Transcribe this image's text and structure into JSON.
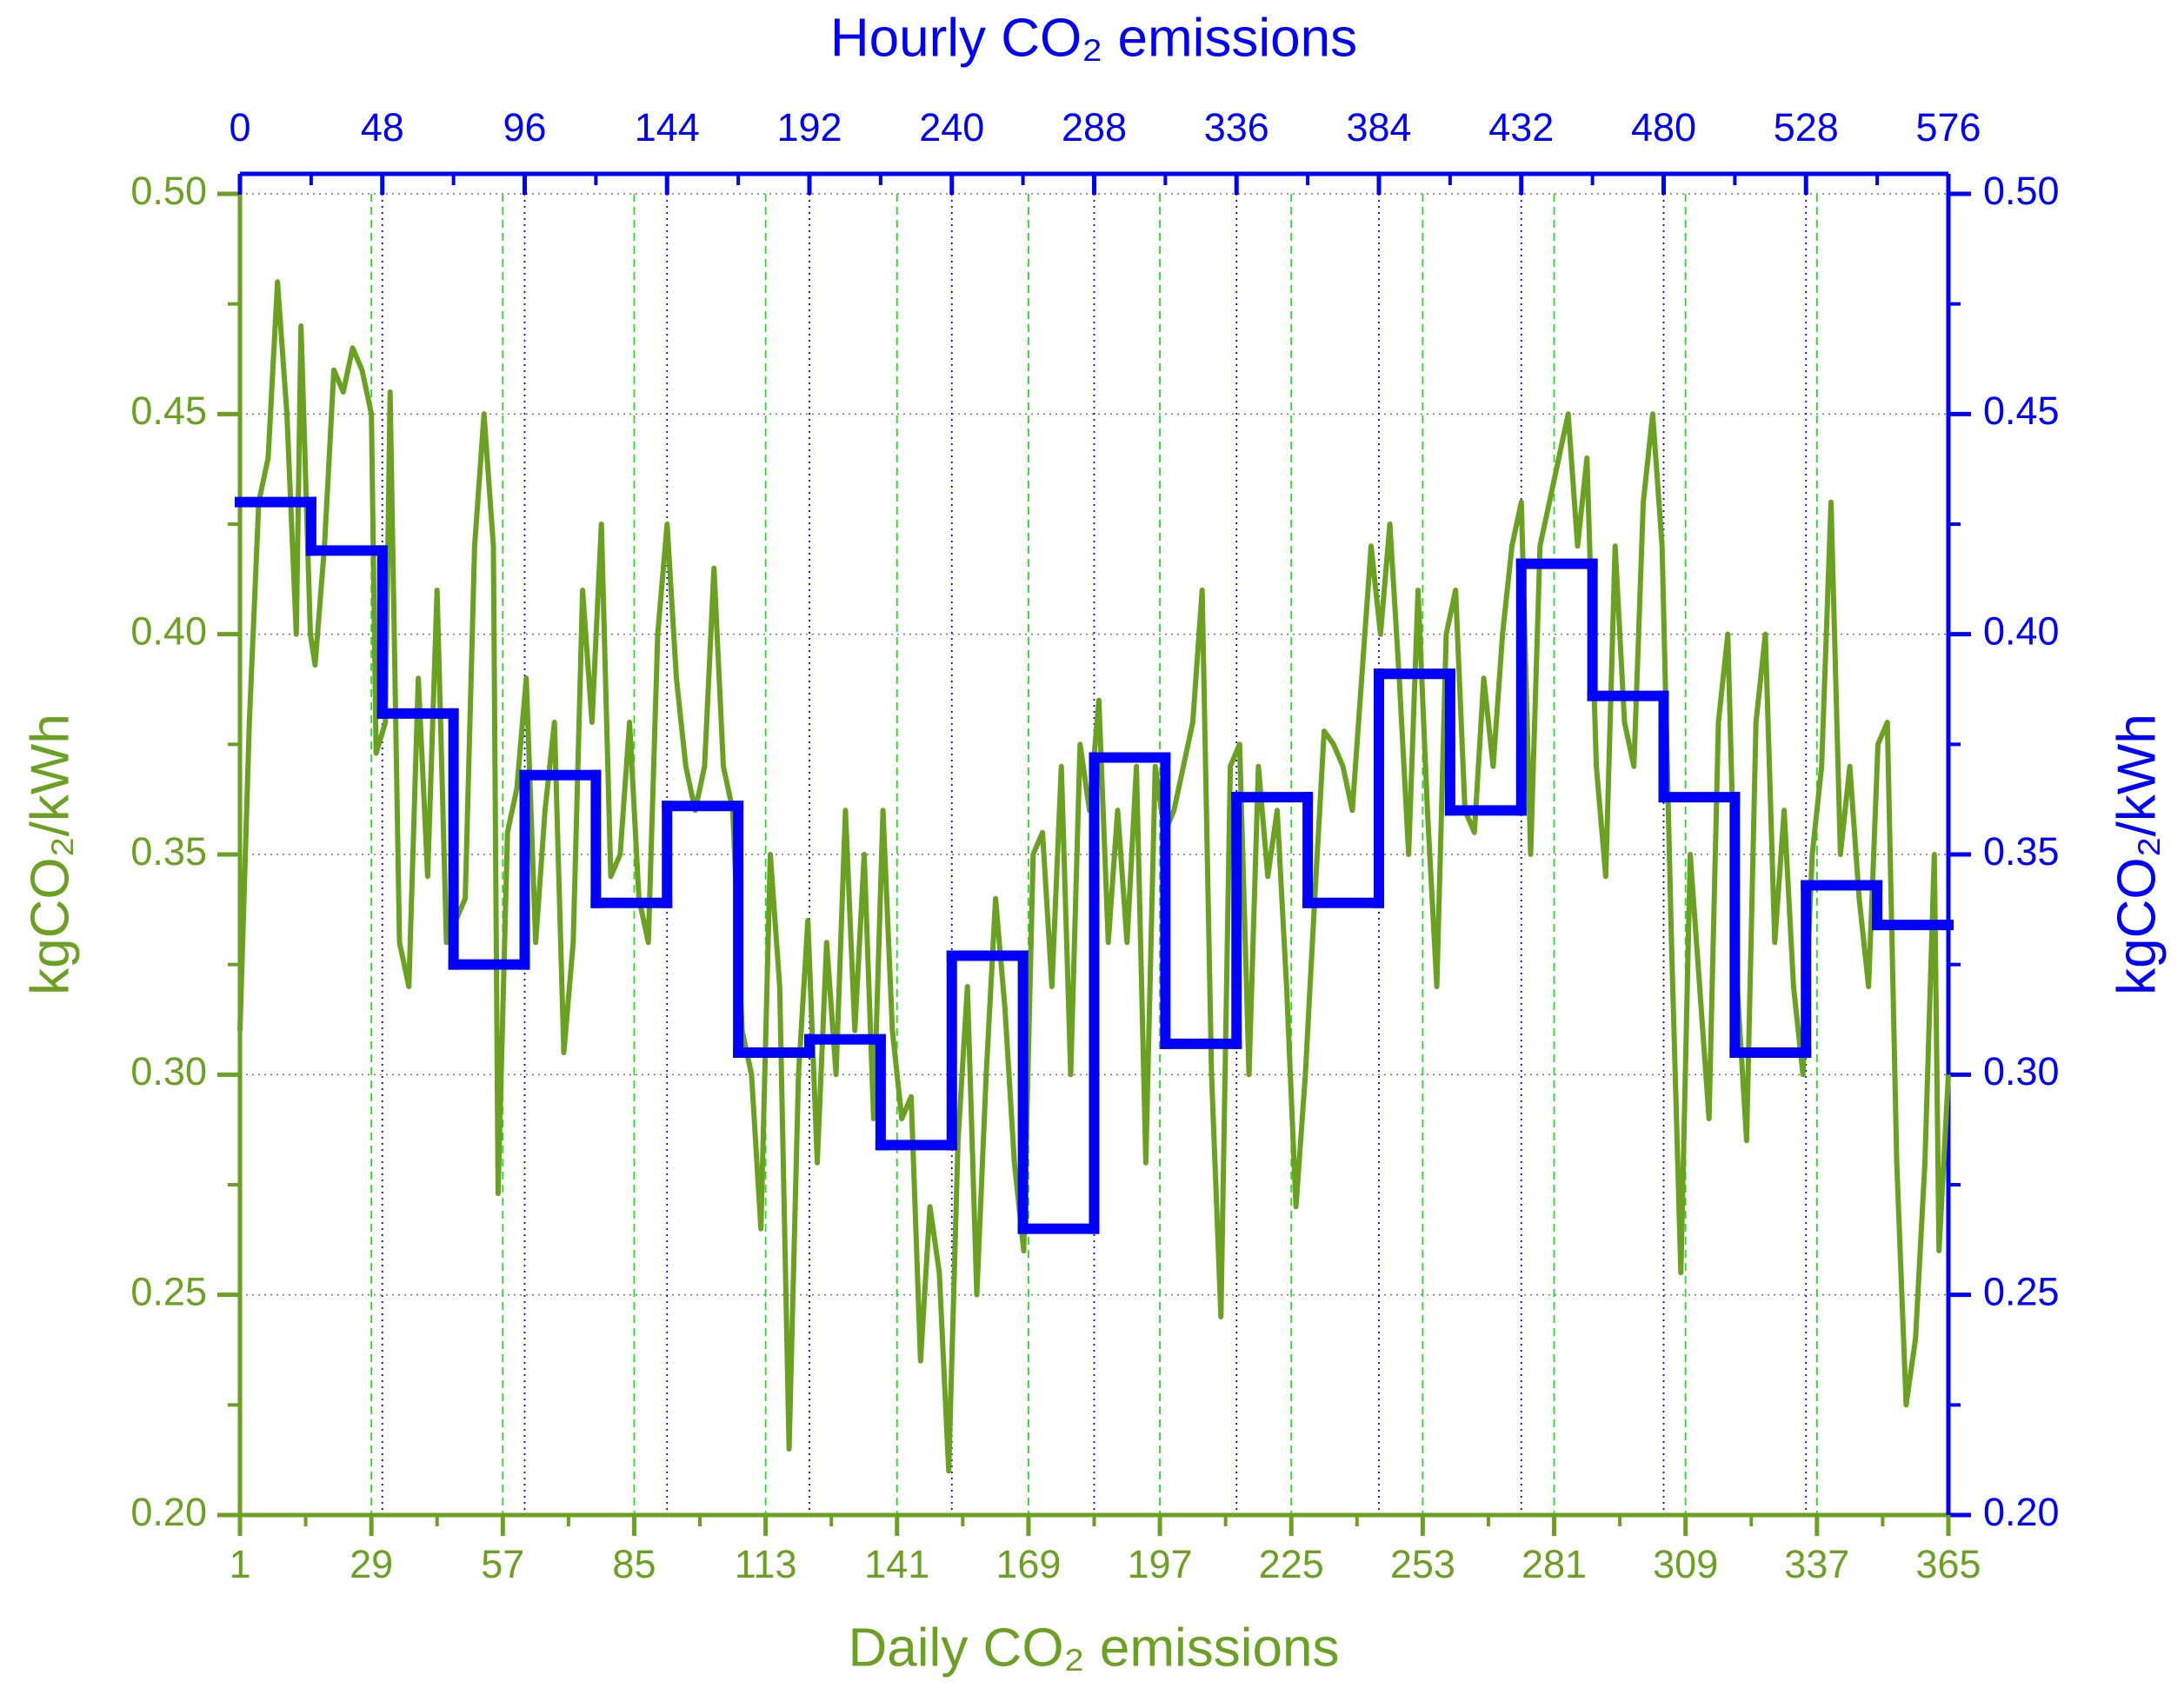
{
  "chart_data": {
    "type": "line",
    "title": "Hourly CO₂ emissions",
    "xlabel": "Daily CO₂ emissions",
    "ylabel": "kgCO₂/kWh",
    "y2label": "kgCO₂/kWh",
    "xlim": [
      1,
      365
    ],
    "xticks": [
      1,
      29,
      57,
      85,
      113,
      141,
      169,
      197,
      225,
      253,
      281,
      309,
      337,
      365
    ],
    "x2lim": [
      0,
      576
    ],
    "x2ticks": [
      0,
      48,
      96,
      144,
      192,
      240,
      288,
      336,
      384,
      432,
      480,
      528,
      576
    ],
    "ylim": [
      0.2,
      0.5
    ],
    "yticks": [
      {
        "value": 0.2,
        "label": "0.20"
      },
      0.25,
      {
        "value": 0.3,
        "label": "0.30"
      },
      0.35,
      {
        "value": 0.4,
        "label": "0.40"
      },
      0.45,
      {
        "value": 0.5,
        "label": "0.50"
      }
    ],
    "y2lim": [
      0.2,
      0.5
    ],
    "y2ticks": [
      {
        "value": 0.2,
        "label": "0.20"
      },
      0.25,
      {
        "value": 0.3,
        "label": "0.30"
      },
      0.35,
      {
        "value": 0.4,
        "label": "0.40"
      },
      0.45,
      {
        "value": 0.5,
        "label": "0.50"
      }
    ],
    "grid": true,
    "series": [
      {
        "color": "#6aa121",
        "axis": "y",
        "x_axis": "x",
        "x": [
          1,
          3,
          5,
          7,
          9,
          11,
          13,
          14,
          16,
          17,
          19,
          21,
          23,
          25,
          27,
          29,
          30,
          32,
          33,
          35,
          37,
          39,
          41,
          43,
          45,
          47,
          49,
          51,
          53,
          55,
          56,
          58,
          60,
          62,
          64,
          66,
          68,
          70,
          72,
          74,
          76,
          78,
          80,
          82,
          84,
          86,
          88,
          90,
          92,
          94,
          96,
          98,
          100,
          102,
          104,
          106,
          108,
          110,
          112,
          114,
          116,
          118,
          120,
          122,
          124,
          126,
          128,
          130,
          132,
          134,
          136,
          138,
          140,
          142,
          144,
          146,
          148,
          150,
          152,
          154,
          156,
          158,
          160,
          162,
          164,
          166,
          168,
          170,
          172,
          174,
          176,
          178,
          180,
          182,
          184,
          186,
          188,
          190,
          192,
          194,
          196,
          198,
          200,
          202,
          204,
          206,
          208,
          210,
          212,
          214,
          216,
          218,
          220,
          222,
          224,
          226,
          228,
          230,
          232,
          234,
          236,
          238,
          240,
          242,
          244,
          246,
          248,
          250,
          252,
          254,
          256,
          258,
          260,
          262,
          264,
          266,
          268,
          270,
          272,
          274,
          276,
          278,
          280,
          282,
          284,
          286,
          288,
          290,
          292,
          294,
          296,
          298,
          300,
          302,
          304,
          306,
          308,
          310,
          312,
          314,
          316,
          318,
          320,
          322,
          324,
          326,
          328,
          330,
          332,
          334,
          336,
          338,
          340,
          342,
          344,
          346,
          348,
          350,
          352,
          354,
          356,
          358,
          360,
          362,
          363,
          365
        ],
        "values": [
          0.31,
          0.38,
          0.43,
          0.44,
          0.48,
          0.45,
          0.4,
          0.47,
          0.4,
          0.393,
          0.42,
          0.46,
          0.455,
          0.465,
          0.46,
          0.45,
          0.373,
          0.38,
          0.455,
          0.33,
          0.32,
          0.39,
          0.345,
          0.41,
          0.33,
          0.335,
          0.34,
          0.42,
          0.45,
          0.42,
          0.273,
          0.355,
          0.365,
          0.39,
          0.33,
          0.36,
          0.38,
          0.305,
          0.33,
          0.41,
          0.38,
          0.425,
          0.345,
          0.35,
          0.38,
          0.34,
          0.33,
          0.4,
          0.425,
          0.39,
          0.37,
          0.36,
          0.37,
          0.415,
          0.37,
          0.36,
          0.31,
          0.3,
          0.265,
          0.35,
          0.32,
          0.215,
          0.3,
          0.335,
          0.28,
          0.33,
          0.3,
          0.36,
          0.31,
          0.35,
          0.29,
          0.36,
          0.31,
          0.29,
          0.295,
          0.235,
          0.27,
          0.255,
          0.21,
          0.285,
          0.32,
          0.25,
          0.3,
          0.34,
          0.315,
          0.28,
          0.26,
          0.35,
          0.355,
          0.32,
          0.37,
          0.3,
          0.375,
          0.36,
          0.385,
          0.33,
          0.36,
          0.33,
          0.37,
          0.28,
          0.37,
          0.355,
          0.36,
          0.37,
          0.38,
          0.41,
          0.3,
          0.245,
          0.37,
          0.375,
          0.3,
          0.37,
          0.345,
          0.36,
          0.32,
          0.27,
          0.3,
          0.34,
          0.378,
          0.375,
          0.37,
          0.36,
          0.39,
          0.42,
          0.4,
          0.425,
          0.39,
          0.35,
          0.41,
          0.36,
          0.32,
          0.4,
          0.41,
          0.36,
          0.355,
          0.39,
          0.37,
          0.4,
          0.42,
          0.43,
          0.35,
          0.42,
          0.43,
          0.44,
          0.45,
          0.42,
          0.44,
          0.37,
          0.345,
          0.42,
          0.38,
          0.37,
          0.43,
          0.45,
          0.42,
          0.33,
          0.255,
          0.35,
          0.32,
          0.29,
          0.38,
          0.4,
          0.32,
          0.285,
          0.38,
          0.4,
          0.33,
          0.36,
          0.32,
          0.3,
          0.35,
          0.37,
          0.43,
          0.35,
          0.37,
          0.34,
          0.32,
          0.375,
          0.38,
          0.28,
          0.225,
          0.24,
          0.28,
          0.35,
          0.26,
          0.3
        ]
      },
      {
        "color": "#0000ff",
        "axis": "y2",
        "x_axis": "x2",
        "step": true,
        "x": [
          0,
          24,
          48,
          72,
          96,
          120,
          144,
          168,
          192,
          216,
          240,
          264,
          288,
          312,
          336,
          360,
          384,
          408,
          432,
          456,
          480,
          504,
          528,
          552
        ],
        "values": [
          0.43,
          0.419,
          0.382,
          0.325,
          0.368,
          0.339,
          0.361,
          0.305,
          0.308,
          0.284,
          0.327,
          0.265,
          0.372,
          0.307,
          0.363,
          0.339,
          0.391,
          0.36,
          0.416,
          0.386,
          0.363,
          0.305,
          0.343,
          0.334
        ]
      }
    ]
  }
}
